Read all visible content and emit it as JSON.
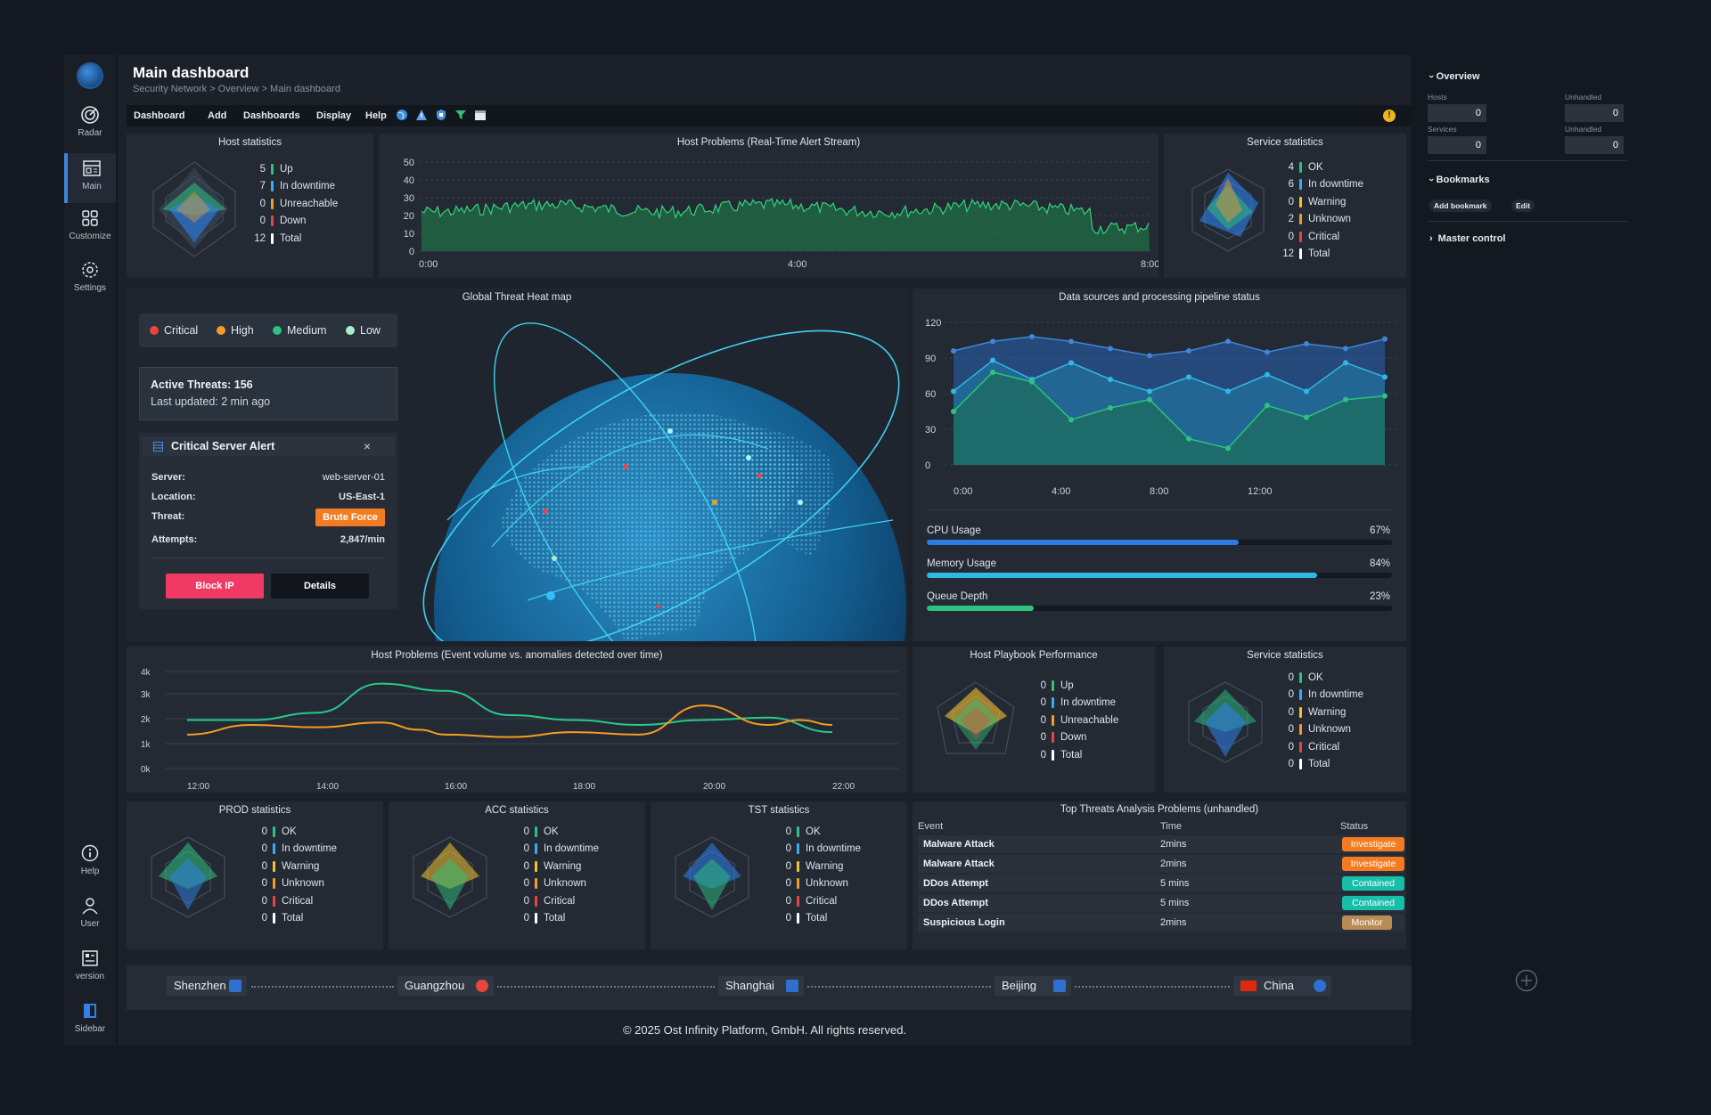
{
  "sidebar": {
    "items": [
      {
        "label": "Radar",
        "icon": "radar-icon"
      },
      {
        "label": "Main",
        "icon": "dashboard-icon"
      },
      {
        "label": "Customize",
        "icon": "grid-icon"
      },
      {
        "label": "Settings",
        "icon": "gear-icon"
      }
    ],
    "bottom_items": [
      {
        "label": "Help",
        "icon": "info-icon"
      },
      {
        "label": "User",
        "icon": "user-icon"
      },
      {
        "label": "version",
        "icon": "version-icon"
      },
      {
        "label": "Sidebar",
        "icon": "sidebar-icon"
      }
    ]
  },
  "header": {
    "title": "Main dashboard",
    "breadcrumb": "Security Network > Overview > Main dashboard",
    "menu": [
      "Dashboard",
      "Add",
      "Dashboards",
      "Display",
      "Help"
    ],
    "warning_glyph": "!"
  },
  "host_statistics": {
    "title": "Host statistics",
    "rows": [
      {
        "n": "5",
        "label": "Up",
        "color": "#2ec27e"
      },
      {
        "n": "7",
        "label": "In downtime",
        "color": "#3fa9f5"
      },
      {
        "n": "0",
        "label": "Unreachable",
        "color": "#f59b23"
      },
      {
        "n": "0",
        "label": "Down",
        "color": "#e8453c"
      },
      {
        "n": "12",
        "label": "Total",
        "color": "#ffffff"
      }
    ]
  },
  "realtime_stream": {
    "title": "Host Problems (Real-Time Alert Stream)",
    "y_ticks": [
      "50",
      "40",
      "30",
      "20",
      "10",
      "0"
    ],
    "x_ticks": [
      "0:00",
      "4:00",
      "8:00"
    ]
  },
  "service_statistics_top": {
    "title": "Service statistics",
    "rows": [
      {
        "n": "4",
        "label": "OK",
        "color": "#2ec27e"
      },
      {
        "n": "6",
        "label": "In downtime",
        "color": "#3fa9f5"
      },
      {
        "n": "0",
        "label": "Warning",
        "color": "#f2c230"
      },
      {
        "n": "2",
        "label": "Unknown",
        "color": "#f59b23"
      },
      {
        "n": "0",
        "label": "Critical",
        "color": "#e8453c"
      },
      {
        "n": "12",
        "label": "Total",
        "color": "#ffffff"
      }
    ]
  },
  "heatmap": {
    "title": "Global Threat Heat map",
    "legend": [
      {
        "label": "Critical",
        "color": "#e8453c"
      },
      {
        "label": "High",
        "color": "#f59b23"
      },
      {
        "label": "Medium",
        "color": "#2ec27e"
      },
      {
        "label": "Low",
        "color": "#a8f0c8"
      }
    ],
    "active_threats": "Active Threats: 156",
    "last_updated": "Last updated: 2 min ago",
    "alert": {
      "title": "Critical Server Alert",
      "close": "×",
      "server_label": "Server:",
      "server": "web-server-01",
      "location_label": "Location:",
      "location": "US-East-1",
      "threat_label": "Threat:",
      "threat": "Brute Force",
      "attempts_label": "Attempts:",
      "attempts": "2,847/min",
      "block_label": "Block IP",
      "details_label": "Details"
    }
  },
  "pipeline": {
    "title": "Data sources and processing pipeline status",
    "y_ticks": [
      "120",
      "90",
      "60",
      "30",
      "0"
    ],
    "x_ticks": [
      "0:00",
      "4:00",
      "8:00",
      "12:00"
    ],
    "progress": [
      {
        "label": "CPU Usage",
        "pct_text": "67%",
        "value": 0.67,
        "color": "#2d7be0"
      },
      {
        "label": "Memory Usage",
        "pct_text": "84%",
        "value": 0.84,
        "color": "#2fb9e6"
      },
      {
        "label": "Queue Depth",
        "pct_text": "23%",
        "value": 0.23,
        "color": "#2ec27e"
      }
    ]
  },
  "event_volume": {
    "title": "Host Problems (Event volume vs. anomalies detected over time)",
    "y_ticks": [
      "4k",
      "3k",
      "2k",
      "1k",
      "0k"
    ],
    "x_ticks": [
      "12:00",
      "14:00",
      "16:00",
      "18:00",
      "20:00",
      "22:00"
    ]
  },
  "playbook": {
    "title": "Host Playbook Performance",
    "rows": [
      {
        "n": "0",
        "label": "Up",
        "color": "#2ec27e"
      },
      {
        "n": "0",
        "label": "In downtime",
        "color": "#3fa9f5"
      },
      {
        "n": "0",
        "label": "Unreachable",
        "color": "#f59b23"
      },
      {
        "n": "0",
        "label": "Down",
        "color": "#e8453c"
      },
      {
        "n": "0",
        "label": "Total",
        "color": "#ffffff"
      }
    ]
  },
  "service_statistics_mid": {
    "title": "Service statistics",
    "rows": [
      {
        "n": "0",
        "label": "OK",
        "color": "#2ec27e"
      },
      {
        "n": "0",
        "label": "In downtime",
        "color": "#3fa9f5"
      },
      {
        "n": "0",
        "label": "Warning",
        "color": "#f2c230"
      },
      {
        "n": "0",
        "label": "Unknown",
        "color": "#f59b23"
      },
      {
        "n": "0",
        "label": "Critical",
        "color": "#e8453c"
      },
      {
        "n": "0",
        "label": "Total",
        "color": "#ffffff"
      }
    ]
  },
  "env_stats": [
    {
      "title": "PROD statistics"
    },
    {
      "title": "ACC statistics"
    },
    {
      "title": "TST statistics"
    }
  ],
  "env_rows": [
    {
      "n": "0",
      "label": "OK",
      "color": "#2ec27e"
    },
    {
      "n": "0",
      "label": "In downtime",
      "color": "#3fa9f5"
    },
    {
      "n": "0",
      "label": "Warning",
      "color": "#f2c230"
    },
    {
      "n": "0",
      "label": "Unknown",
      "color": "#f59b23"
    },
    {
      "n": "0",
      "label": "Critical",
      "color": "#e8453c"
    },
    {
      "n": "0",
      "label": "Total",
      "color": "#ffffff"
    }
  ],
  "threats_table": {
    "title": "Top Threats Analysis Problems (unhandled)",
    "headers": [
      "Event",
      "Time",
      "Status"
    ],
    "rows": [
      {
        "event": "Malware Attack",
        "time": "2mins",
        "status": "Investigate",
        "color": "#f37c22"
      },
      {
        "event": "Malware Attack",
        "time": "2mins",
        "status": "Investigate",
        "color": "#f37c22"
      },
      {
        "event": "DDos Attempt",
        "time": "5 mins",
        "status": "Contained",
        "color": "#18bfa8"
      },
      {
        "event": "DDos Attempt",
        "time": "5 mins",
        "status": "Contained",
        "color": "#18bfa8"
      },
      {
        "event": "Suspicious Login",
        "time": "2mins",
        "status": "Monitor",
        "color": "#b98c56"
      }
    ]
  },
  "cities": [
    "Shenzhen",
    "Guangzhou",
    "Shanghai",
    "Beijing",
    "China"
  ],
  "footer": "© 2025 Ost Infinity Platform, GmbH. All rights reserved.",
  "overview": {
    "overview_label": "Overview",
    "hosts_label": "Hosts",
    "hosts": "0",
    "hosts_unhandled_label": "Unhandled",
    "hosts_unhandled": "0",
    "services_label": "Services",
    "services": "0",
    "services_unhandled_label": "Unhandled",
    "services_unhandled": "0",
    "bookmarks_label": "Bookmarks",
    "add_bookmark": "Add bookmark",
    "edit": "Edit",
    "master_control": "Master control"
  }
}
